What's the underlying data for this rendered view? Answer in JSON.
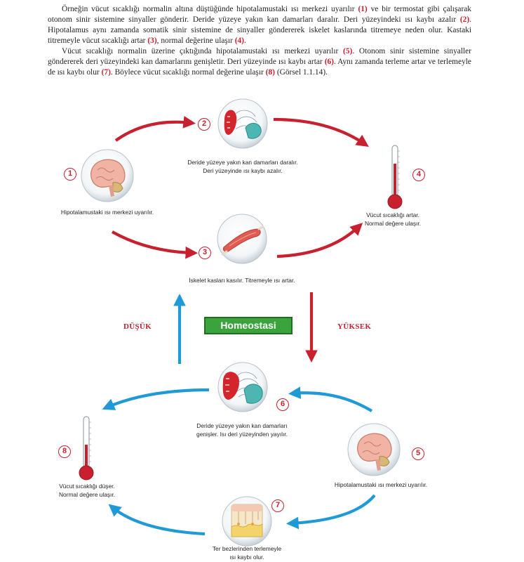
{
  "text": {
    "para1": {
      "s1": "Örneğin vücut sıcaklığı normalin altına düştüğünde hipotalamustaki ısı merkezi uyarılır",
      "n1": "(1)",
      "s2": "ve bir termostat gibi çalışarak otonom sinir sistemine sinyaller gönderir. Deride yüzeye yakın kan damarları daralır. Deri yüzeyindeki ısı kaybı azalır",
      "n2": "(2)",
      "s3": ". Hipotalamus aynı zamanda somatik sinir sistemine de sinyaller göndererek iskelet kaslarında titremeye neden olur. Kastaki titremeyle vücut sıcaklığı artar",
      "n3": "(3)",
      "s4": ", normal değerine ulaşır",
      "n4": "(4)",
      "s5": "."
    },
    "para2": {
      "s1": "Vücut sıcaklığı normalin üzerine çıktığında hipotalamustaki ısı merkezi uyarılır",
      "n5": "(5)",
      "s2": ". Otonom sinir sistemine sinyaller göndererek deri yüzeyindeki kan damarlarını genişletir. Deri yüzeyinde ısı kaybı artar",
      "n6": "(6)",
      "s3": ". Aynı zamanda terleme artar ve terlemeyle de ısı kaybı olur",
      "n7": "(7)",
      "s4": ". Böylece vücut sıcaklığı normal değerine ulaşır",
      "n8": "(8)",
      "s5": "(Görsel 1.1.14)."
    }
  },
  "diagram": {
    "center_label": "Homeostasi",
    "low_label": "DÜŞÜK",
    "high_label": "YÜKSEK",
    "steps": [
      {
        "number": "1",
        "lines": [
          "Hipotalamustaki ısı merkezi uyarılır."
        ]
      },
      {
        "number": "2",
        "lines": [
          "Deride yüzeye yakın kan damarları daralır.",
          "Deri yüzeyinde ısı kaybı azalır."
        ]
      },
      {
        "number": "3",
        "lines": [
          "İskelet kasları kasılır. Titremeyle ısı artar."
        ]
      },
      {
        "number": "4",
        "lines": [
          "Vücut sıcaklığı artar.",
          "Normal değere ulaşır."
        ]
      },
      {
        "number": "5",
        "lines": [
          "Hipotalamustaki ısı merkezi uyarılır."
        ]
      },
      {
        "number": "6",
        "lines": [
          "Deride yüzeye yakın kan damarları",
          "genişler. Isı deri yüzeyinden yayılır."
        ]
      },
      {
        "number": "7",
        "lines": [
          "Ter bezlerinden terlemeyle",
          "ısı kaybı olur."
        ]
      },
      {
        "number": "8",
        "lines": [
          "Vücut sıcaklığı düşer.",
          "Normal değere ulaşır."
        ]
      }
    ],
    "colors": {
      "accent": "#c8202f",
      "arrow_red": "#c8202f",
      "arrow_blue": "#1f9ad6",
      "homeostasis_bg": "#3aa33c"
    },
    "icons": [
      "brain-icon",
      "blood-vessel-icon",
      "muscle-icon",
      "thermometer-icon",
      "skin-sweat-gland-icon"
    ]
  }
}
